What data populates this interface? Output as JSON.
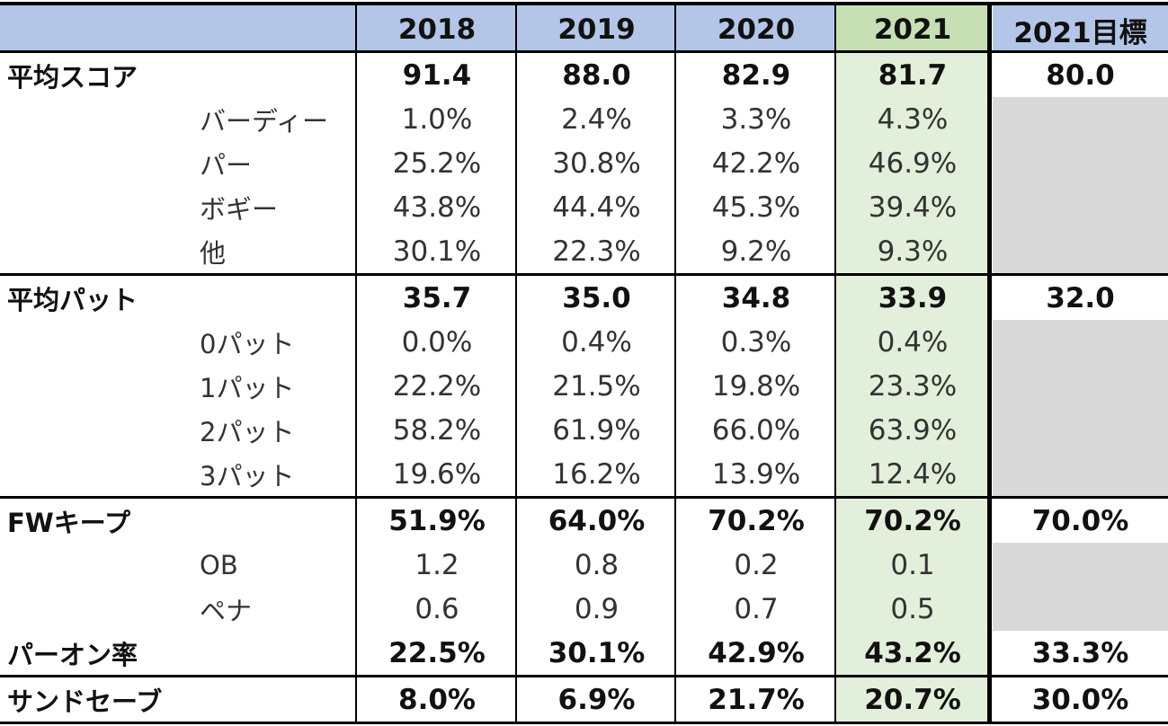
{
  "header": {
    "columns": [
      "2018",
      "2019",
      "2020",
      "2021",
      "2021目標"
    ]
  },
  "sections": [
    [
      {
        "title": "平均スコア",
        "values": [
          "91.4",
          "88.0",
          "82.9",
          "81.7"
        ],
        "target": "80.0"
      },
      {
        "item": "バーディー",
        "values": [
          "1.0%",
          "2.4%",
          "3.3%",
          "4.3%"
        ]
      },
      {
        "item": "パー",
        "values": [
          "25.2%",
          "30.8%",
          "42.2%",
          "46.9%"
        ]
      },
      {
        "item": "ボギー",
        "values": [
          "43.8%",
          "44.4%",
          "45.3%",
          "39.4%"
        ]
      },
      {
        "item": "他",
        "values": [
          "30.1%",
          "22.3%",
          "9.2%",
          "9.3%"
        ]
      }
    ],
    [
      {
        "title": "平均パット",
        "values": [
          "35.7",
          "35.0",
          "34.8",
          "33.9"
        ],
        "target": "32.0"
      },
      {
        "item": "0パット",
        "values": [
          "0.0%",
          "0.4%",
          "0.3%",
          "0.4%"
        ]
      },
      {
        "item": "1パット",
        "values": [
          "22.2%",
          "21.5%",
          "19.8%",
          "23.3%"
        ]
      },
      {
        "item": "2パット",
        "values": [
          "58.2%",
          "61.9%",
          "66.0%",
          "63.9%"
        ]
      },
      {
        "item": "3パット",
        "values": [
          "19.6%",
          "16.2%",
          "13.9%",
          "12.4%"
        ]
      }
    ],
    [
      {
        "title": "FWキープ",
        "values": [
          "51.9%",
          "64.0%",
          "70.2%",
          "70.2%"
        ],
        "target": "70.0%"
      },
      {
        "item": "OB",
        "values": [
          "1.2",
          "0.8",
          "0.2",
          "0.1"
        ]
      },
      {
        "item": "ペナ",
        "values": [
          "0.6",
          "0.9",
          "0.7",
          "0.5"
        ]
      },
      {
        "title": "パーオン率",
        "values": [
          "22.5%",
          "30.1%",
          "42.9%",
          "43.2%"
        ],
        "target": "33.3%"
      }
    ],
    [
      {
        "title": "サンドセーブ",
        "values": [
          "8.0%",
          "6.9%",
          "21.7%",
          "20.7%"
        ],
        "target": "30.0%"
      }
    ]
  ]
}
